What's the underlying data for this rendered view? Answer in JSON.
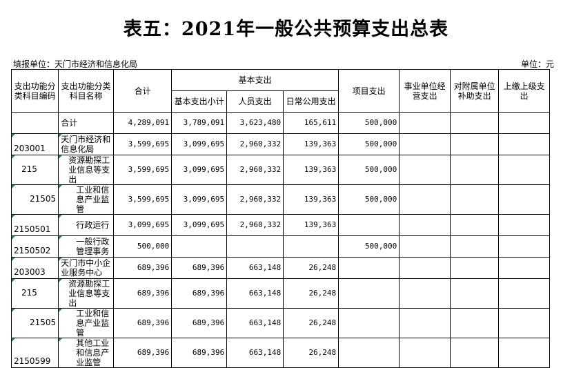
{
  "title": "表五：2021年一般公共预算支出总表",
  "unit_left": "填报单位：天门市经济和信息化局",
  "unit_right": "单位：元",
  "headers": {
    "code": "支出功能分类科目编码",
    "name": "支出功能分类科目名称",
    "total": "合计",
    "basic": "基本支出",
    "basic_sub": "基本支出小计",
    "personnel": "人员支出",
    "public": "日常公用支出",
    "project": "项目支出",
    "business": "事业单位经营支出",
    "subsidy": "对附属单位补助支出",
    "upper": "上缴上级支出"
  },
  "rows": [
    {
      "code": "",
      "name": "合计",
      "total": "4,289,091",
      "basic_sub": "3,789,091",
      "personnel": "3,623,480",
      "public": "165,611",
      "project": "500,000"
    },
    {
      "code": "203001",
      "name": "天门市经济和信息化局",
      "total": "3,599,695",
      "basic_sub": "3,099,695",
      "personnel": "2,960,332",
      "public": "139,363",
      "project": "500,000"
    },
    {
      "code": "215",
      "name": "资源勘探工业信息等支出",
      "total": "3,599,695",
      "basic_sub": "3,099,695",
      "personnel": "2,960,332",
      "public": "139,363",
      "project": "500,000"
    },
    {
      "code": "21505",
      "name": "工业和信息产业监管",
      "total": "3,599,695",
      "basic_sub": "3,099,695",
      "personnel": "2,960,332",
      "public": "139,363",
      "project": "500,000"
    },
    {
      "code": "2150501",
      "name": "行政运行",
      "total": "3,099,695",
      "basic_sub": "3,099,695",
      "personnel": "2,960,332",
      "public": "139,363",
      "project": ""
    },
    {
      "code": "2150502",
      "name": "一般行政管理事务",
      "total": "500,000",
      "basic_sub": "",
      "personnel": "",
      "public": "",
      "project": "500,000"
    },
    {
      "code": "203003",
      "name": "天门市中小企业服务中心",
      "total": "689,396",
      "basic_sub": "689,396",
      "personnel": "663,148",
      "public": "26,248",
      "project": ""
    },
    {
      "code": "215",
      "name": "资源勘探工业信息等支出",
      "total": "689,396",
      "basic_sub": "689,396",
      "personnel": "663,148",
      "public": "26,248",
      "project": ""
    },
    {
      "code": "21505",
      "name": "工业和信息产业监管",
      "total": "689,396",
      "basic_sub": "689,396",
      "personnel": "663,148",
      "public": "26,248",
      "project": ""
    },
    {
      "code": "2150599",
      "name": "其他工业和信息产业监管",
      "total": "689,396",
      "basic_sub": "689,396",
      "personnel": "663,148",
      "public": "26,248",
      "project": ""
    }
  ]
}
